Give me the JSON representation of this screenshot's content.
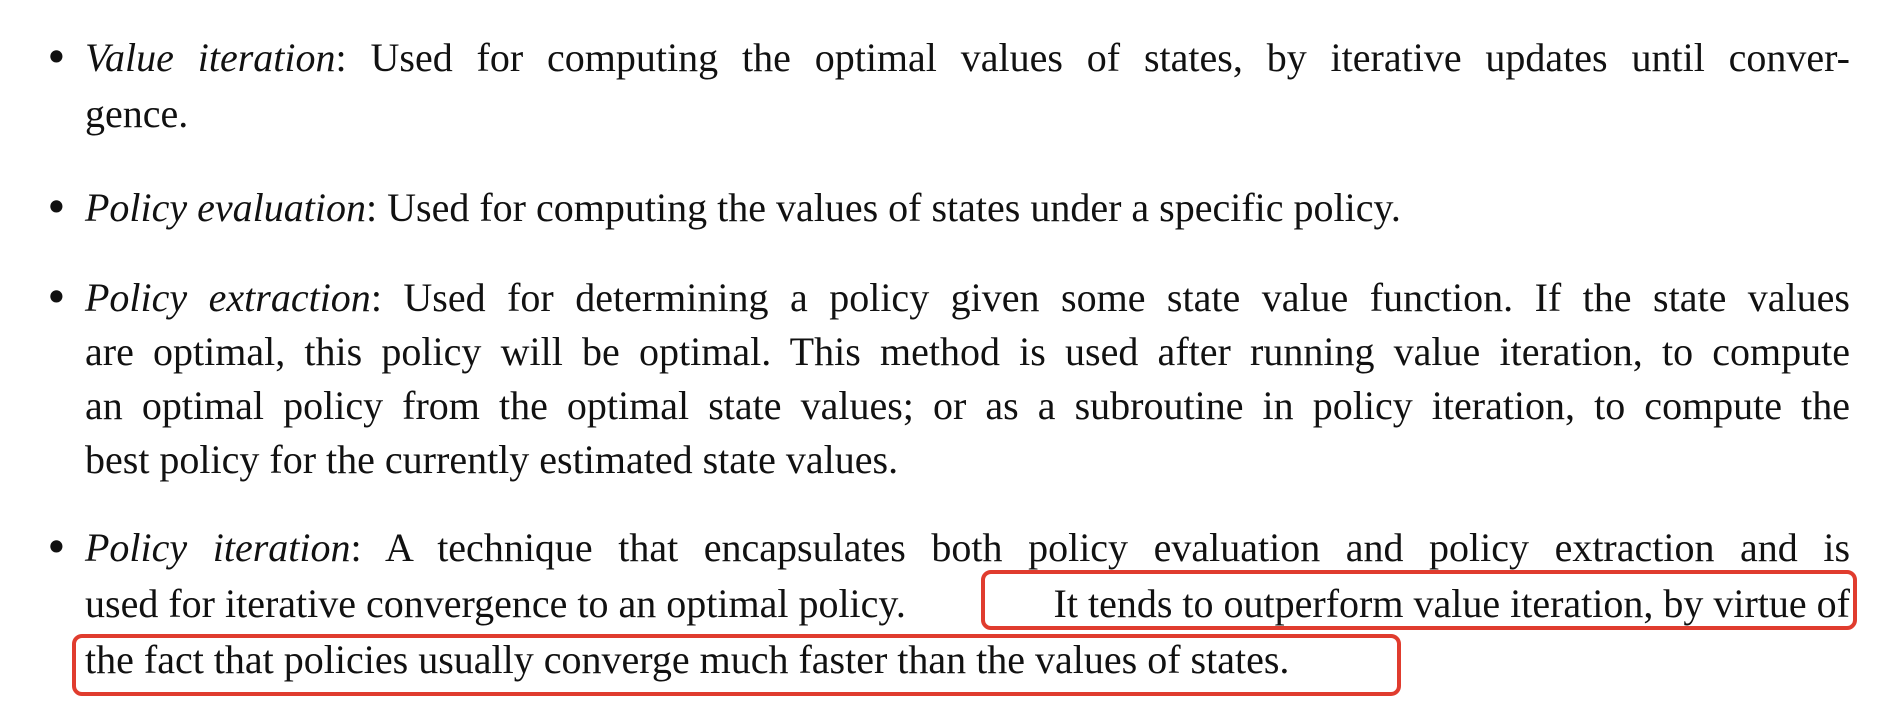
{
  "items": [
    {
      "term": "Value iteration",
      "lines": [
        "Used for computing the optimal values of states, by iterative updates until conver-",
        "gence."
      ]
    },
    {
      "term": "Policy evaluation",
      "lines": [
        "Used for computing the values of states under a specific policy."
      ]
    },
    {
      "term": "Policy extraction",
      "lines": [
        "Used for determining a policy given some state value function. If the state values",
        "are optimal, this policy will be optimal. This method is used after running value iteration, to compute",
        "an optimal policy from the optimal state values; or as a subroutine in policy iteration, to compute the",
        "best policy for the currently estimated state values."
      ]
    },
    {
      "term": "Policy iteration",
      "lines": [
        "A technique that encapsulates both policy evaluation and policy extraction and is",
        "used for iterative convergence to an optimal policy.",
        "It tends to outperform value iteration, by virtue of",
        "the fact that policies usually converge much faster than the values of states."
      ]
    }
  ],
  "bullet_char": "•",
  "colon": ":",
  "highlight_color": "#e03c2e"
}
